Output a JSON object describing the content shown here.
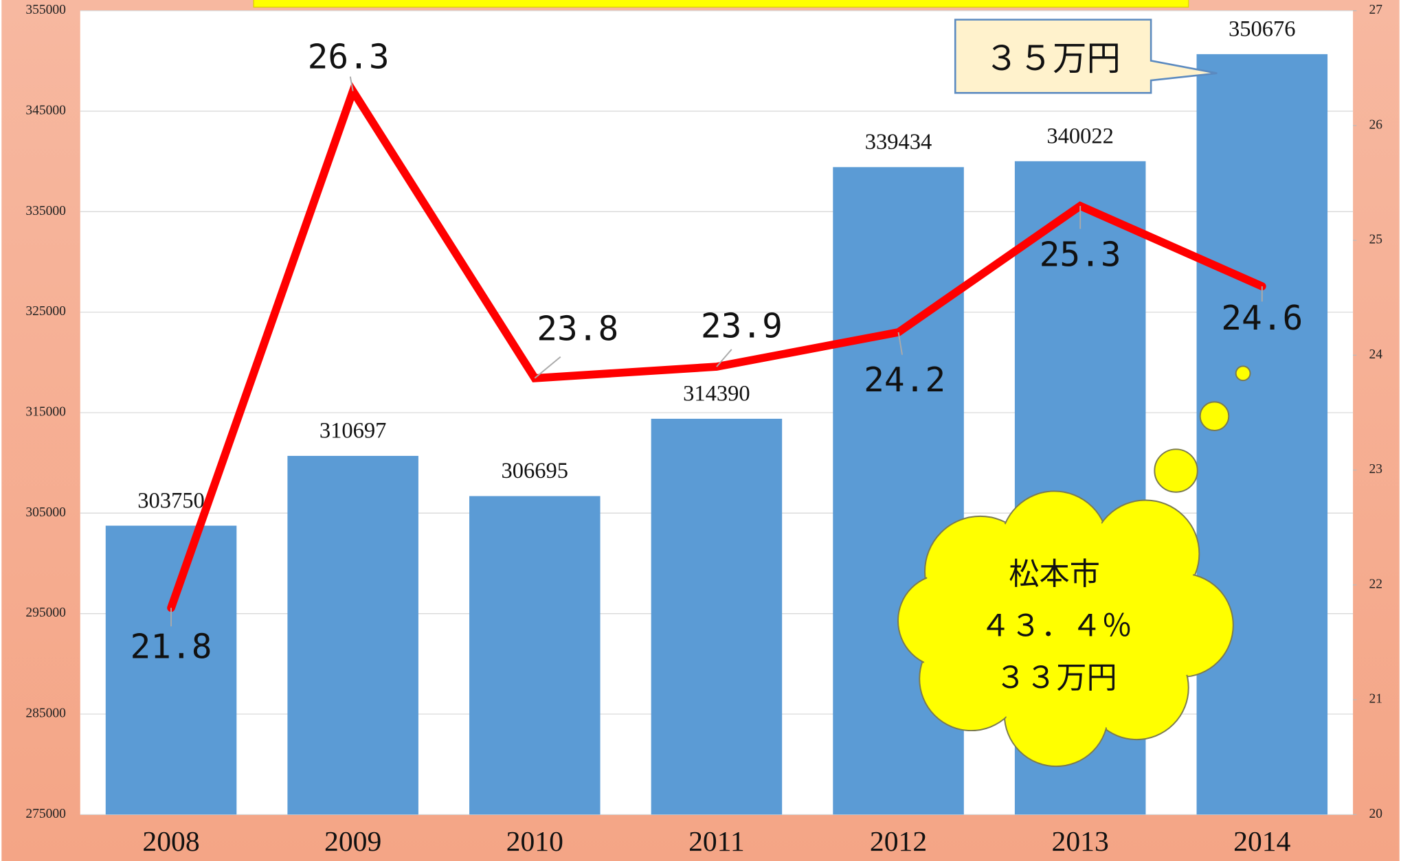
{
  "chart_data": {
    "type": "bar",
    "categories": [
      "2008",
      "2009",
      "2010",
      "2011",
      "2012",
      "2013",
      "2014"
    ],
    "series": [
      {
        "type": "bar",
        "color": "#5b9bd5",
        "values": [
          303750,
          310697,
          306695,
          314390,
          339434,
          340022,
          350676
        ]
      },
      {
        "type": "line",
        "axis": "y2",
        "color": "#ff0000",
        "values": [
          21.8,
          26.3,
          23.8,
          23.9,
          24.2,
          25.3,
          24.6
        ]
      }
    ],
    "ylim": [
      275000,
      355000
    ],
    "yticks": [
      275000,
      285000,
      295000,
      305000,
      315000,
      325000,
      335000,
      345000,
      355000
    ],
    "y2lim": [
      20,
      27
    ],
    "y2ticks": [
      20,
      21,
      22,
      23,
      24,
      25,
      26,
      27
    ],
    "grid": true,
    "annotations": [
      "３５万円",
      "松本市",
      "４３．４％",
      "３３万円"
    ]
  }
}
